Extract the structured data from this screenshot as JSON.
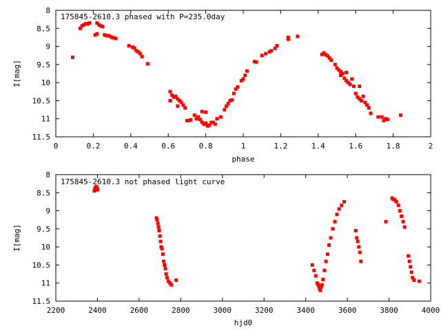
{
  "chart_data": [
    {
      "type": "scatter",
      "title": "175845-2610.3 phased with P=235.0day",
      "xlabel": "phase",
      "ylabel": "I[mag]",
      "xlim": [
        0,
        2
      ],
      "ylim": [
        11.5,
        8
      ],
      "y_inverted": true,
      "xticks": [
        "0",
        "0.2",
        "0.4",
        "0.6",
        "0.8",
        "1",
        "1.2",
        "1.4",
        "1.6",
        "1.8",
        "2"
      ],
      "yticks": [
        "8",
        "8.5",
        "9",
        "9.5",
        "10",
        "10.5",
        "11",
        "11.5"
      ],
      "series": [
        {
          "color": "#ff0000",
          "marker": "filled-square",
          "points": [
            [
              0.09,
              9.3
            ],
            [
              0.13,
              8.5
            ],
            [
              0.14,
              8.43
            ],
            [
              0.15,
              8.4
            ],
            [
              0.16,
              8.37
            ],
            [
              0.17,
              8.38
            ],
            [
              0.18,
              8.35
            ],
            [
              0.21,
              8.68
            ],
            [
              0.22,
              8.65
            ],
            [
              0.22,
              8.35
            ],
            [
              0.23,
              8.4
            ],
            [
              0.24,
              8.43
            ],
            [
              0.25,
              8.45
            ],
            [
              0.26,
              8.68
            ],
            [
              0.27,
              8.7
            ],
            [
              0.28,
              8.7
            ],
            [
              0.29,
              8.72
            ],
            [
              0.3,
              8.75
            ],
            [
              0.31,
              8.76
            ],
            [
              0.32,
              8.78
            ],
            [
              0.39,
              8.98
            ],
            [
              0.41,
              9.02
            ],
            [
              0.42,
              9.05
            ],
            [
              0.43,
              9.12
            ],
            [
              0.44,
              9.15
            ],
            [
              0.45,
              9.2
            ],
            [
              0.46,
              9.28
            ],
            [
              0.49,
              9.48
            ],
            [
              0.61,
              10.5
            ],
            [
              0.61,
              10.25
            ],
            [
              0.62,
              10.35
            ],
            [
              0.63,
              10.4
            ],
            [
              0.64,
              10.38
            ],
            [
              0.65,
              10.45
            ],
            [
              0.65,
              10.65
            ],
            [
              0.66,
              10.5
            ],
            [
              0.67,
              10.55
            ],
            [
              0.68,
              10.62
            ],
            [
              0.69,
              10.7
            ],
            [
              0.7,
              11.05
            ],
            [
              0.71,
              11.05
            ],
            [
              0.72,
              11.03
            ],
            [
              0.74,
              10.9
            ],
            [
              0.75,
              11.0
            ],
            [
              0.76,
              10.95
            ],
            [
              0.77,
              11.02
            ],
            [
              0.78,
              10.8
            ],
            [
              0.78,
              11.1
            ],
            [
              0.79,
              11.15
            ],
            [
              0.8,
              10.82
            ],
            [
              0.8,
              11.12
            ],
            [
              0.81,
              11.2
            ],
            [
              0.82,
              11.18
            ],
            [
              0.83,
              11.1
            ],
            [
              0.84,
              11.1
            ],
            [
              0.85,
              11.15
            ],
            [
              0.86,
              11.0
            ],
            [
              0.88,
              10.95
            ],
            [
              0.9,
              10.75
            ],
            [
              0.91,
              10.65
            ],
            [
              0.92,
              10.58
            ],
            [
              0.93,
              10.5
            ],
            [
              0.94,
              10.48
            ],
            [
              0.95,
              10.3
            ],
            [
              0.96,
              10.18
            ],
            [
              0.97,
              10.12
            ],
            [
              0.99,
              9.95
            ],
            [
              1.0,
              9.9
            ],
            [
              1.01,
              9.8
            ],
            [
              1.02,
              9.68
            ],
            [
              1.06,
              9.42
            ],
            [
              1.07,
              9.43
            ],
            [
              1.1,
              9.25
            ],
            [
              1.12,
              9.2
            ],
            [
              1.14,
              9.15
            ],
            [
              1.15,
              9.12
            ],
            [
              1.17,
              9.05
            ],
            [
              1.18,
              8.98
            ],
            [
              1.24,
              8.8
            ],
            [
              1.24,
              8.75
            ],
            [
              1.29,
              8.72
            ],
            [
              1.42,
              9.22
            ],
            [
              1.43,
              9.18
            ],
            [
              1.44,
              9.23
            ],
            [
              1.45,
              9.26
            ],
            [
              1.46,
              9.32
            ],
            [
              1.47,
              9.38
            ],
            [
              1.49,
              9.5
            ],
            [
              1.5,
              9.6
            ],
            [
              1.51,
              9.65
            ],
            [
              1.52,
              9.7
            ],
            [
              1.52,
              9.8
            ],
            [
              1.53,
              9.75
            ],
            [
              1.54,
              9.88
            ],
            [
              1.55,
              9.95
            ],
            [
              1.55,
              9.72
            ],
            [
              1.56,
              10.0
            ],
            [
              1.57,
              10.05
            ],
            [
              1.58,
              9.9
            ],
            [
              1.59,
              10.1
            ],
            [
              1.6,
              10.3
            ],
            [
              1.61,
              10.4
            ],
            [
              1.62,
              10.45
            ],
            [
              1.62,
              10.1
            ],
            [
              1.63,
              10.5
            ],
            [
              1.64,
              10.38
            ],
            [
              1.65,
              10.55
            ],
            [
              1.66,
              10.62
            ],
            [
              1.67,
              10.7
            ],
            [
              1.68,
              10.85
            ],
            [
              1.72,
              10.95
            ],
            [
              1.74,
              10.95
            ],
            [
              1.75,
              11.05
            ],
            [
              1.76,
              11.0
            ],
            [
              1.77,
              11.02
            ],
            [
              1.84,
              10.9
            ]
          ]
        }
      ]
    },
    {
      "type": "scatter",
      "title": "175845-2610.3 not phased light curve",
      "xlabel": "hjd0",
      "ylabel": "I[mag]",
      "xlim": [
        2200,
        4000
      ],
      "ylim": [
        11.5,
        8
      ],
      "y_inverted": true,
      "xticks": [
        "2200",
        "2400",
        "2600",
        "2800",
        "3000",
        "3200",
        "3400",
        "3600",
        "3800",
        "4000"
      ],
      "yticks": [
        "8",
        "8.5",
        "9",
        "9.5",
        "10",
        "10.5",
        "11",
        "11.5"
      ],
      "series": [
        {
          "color": "#ff0000",
          "marker": "filled-square",
          "points": [
            [
              2385,
              8.45
            ],
            [
              2388,
              8.38
            ],
            [
              2392,
              8.35
            ],
            [
              2395,
              8.33
            ],
            [
              2398,
              8.38
            ],
            [
              2401,
              8.42
            ],
            [
              2683,
              9.2
            ],
            [
              2686,
              9.25
            ],
            [
              2690,
              9.35
            ],
            [
              2693,
              9.45
            ],
            [
              2696,
              9.55
            ],
            [
              2700,
              9.7
            ],
            [
              2703,
              9.85
            ],
            [
              2706,
              10.0
            ],
            [
              2710,
              10.05
            ],
            [
              2714,
              10.2
            ],
            [
              2718,
              10.4
            ],
            [
              2722,
              10.5
            ],
            [
              2726,
              10.6
            ],
            [
              2730,
              10.75
            ],
            [
              2734,
              10.85
            ],
            [
              2740,
              10.95
            ],
            [
              2748,
              11.0
            ],
            [
              2755,
              11.05
            ],
            [
              2778,
              10.92
            ],
            [
              3432,
              10.5
            ],
            [
              3440,
              10.65
            ],
            [
              3448,
              10.8
            ],
            [
              3455,
              11.0
            ],
            [
              3460,
              11.05
            ],
            [
              3464,
              11.1
            ],
            [
              3467,
              11.15
            ],
            [
              3470,
              11.2
            ],
            [
              3474,
              11.1
            ],
            [
              3478,
              11.05
            ],
            [
              3483,
              10.9
            ],
            [
              3490,
              10.65
            ],
            [
              3497,
              10.4
            ],
            [
              3505,
              10.2
            ],
            [
              3512,
              9.95
            ],
            [
              3520,
              9.75
            ],
            [
              3530,
              9.5
            ],
            [
              3540,
              9.3
            ],
            [
              3550,
              9.1
            ],
            [
              3560,
              8.95
            ],
            [
              3572,
              8.85
            ],
            [
              3585,
              8.75
            ],
            [
              3640,
              9.55
            ],
            [
              3645,
              9.75
            ],
            [
              3650,
              9.85
            ],
            [
              3655,
              10.0
            ],
            [
              3660,
              10.15
            ],
            [
              3665,
              10.4
            ],
            [
              3785,
              9.3
            ],
            [
              3815,
              8.65
            ],
            [
              3820,
              8.68
            ],
            [
              3828,
              8.7
            ],
            [
              3835,
              8.75
            ],
            [
              3845,
              8.85
            ],
            [
              3852,
              9.0
            ],
            [
              3860,
              9.15
            ],
            [
              3868,
              9.3
            ],
            [
              3875,
              9.45
            ],
            [
              3893,
              10.25
            ],
            [
              3898,
              10.4
            ],
            [
              3903,
              10.55
            ],
            [
              3908,
              10.7
            ],
            [
              3913,
              10.85
            ],
            [
              3920,
              10.92
            ],
            [
              3945,
              10.95
            ]
          ]
        }
      ]
    }
  ]
}
